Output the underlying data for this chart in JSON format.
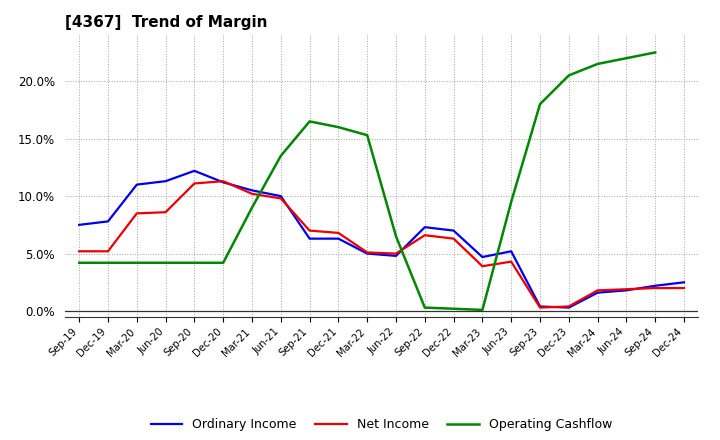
{
  "title": "[4367]  Trend of Margin",
  "labels": [
    "Sep-19",
    "Dec-19",
    "Mar-20",
    "Jun-20",
    "Sep-20",
    "Dec-20",
    "Mar-21",
    "Jun-21",
    "Sep-21",
    "Dec-21",
    "Mar-22",
    "Jun-22",
    "Sep-22",
    "Dec-22",
    "Mar-23",
    "Jun-23",
    "Sep-23",
    "Dec-23",
    "Mar-24",
    "Jun-24",
    "Sep-24",
    "Dec-24"
  ],
  "ordinary_income": [
    7.5,
    7.8,
    11.0,
    11.3,
    12.2,
    11.2,
    10.5,
    10.0,
    6.3,
    6.3,
    5.0,
    4.8,
    7.3,
    7.0,
    4.7,
    5.2,
    0.4,
    0.3,
    1.6,
    1.8,
    2.2,
    2.5
  ],
  "net_income": [
    5.2,
    5.2,
    8.5,
    8.6,
    11.1,
    11.3,
    10.2,
    9.8,
    7.0,
    6.8,
    5.1,
    5.0,
    6.6,
    6.3,
    3.9,
    4.3,
    0.3,
    0.4,
    1.8,
    1.9,
    2.0,
    2.0
  ],
  "operating_cashflow": [
    4.2,
    4.2,
    4.2,
    4.2,
    4.2,
    4.2,
    9.0,
    13.5,
    16.5,
    16.0,
    15.3,
    6.5,
    0.3,
    0.2,
    0.1,
    9.5,
    18.0,
    20.5,
    21.5,
    22.0,
    22.5,
    null
  ],
  "colors": {
    "ordinary_income": "#0000ee",
    "net_income": "#ee0000",
    "operating_cashflow": "#008800"
  },
  "ylim": [
    -0.5,
    24
  ],
  "yticks": [
    0,
    5,
    10,
    15,
    20
  ],
  "ytick_labels": [
    "0.0%",
    "5.0%",
    "10.0%",
    "15.0%",
    "20.0%"
  ],
  "background_color": "#ffffff",
  "plot_bg_color": "#ffffff",
  "grid_color": "#999999",
  "legend_labels": [
    "Ordinary Income",
    "Net Income",
    "Operating Cashflow"
  ]
}
